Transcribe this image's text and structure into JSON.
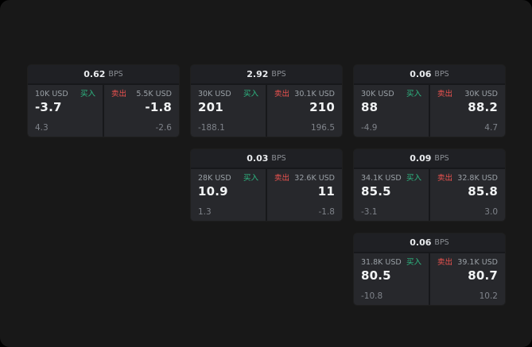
{
  "labels": {
    "buy": "买入",
    "sell": "卖出",
    "bps_suffix": "BPS"
  },
  "colors": {
    "buy": "#2ebd85",
    "sell": "#ef5350",
    "page_bg": "#181818",
    "card_bg": "#1f2024",
    "panel_bg": "#27282c"
  },
  "cards": [
    {
      "col": 1,
      "row": 1,
      "bps": "0.62",
      "buy_amount": "10K USD",
      "sell_amount": "5.5K USD",
      "buy_value": "-3.7",
      "sell_value": "-1.8",
      "buy_delta": "4.3",
      "sell_delta": "-2.6"
    },
    {
      "col": 2,
      "row": 1,
      "bps": "2.92",
      "buy_amount": "30K USD",
      "sell_amount": "30.1K USD",
      "buy_value": "201",
      "sell_value": "210",
      "buy_delta": "-188.1",
      "sell_delta": "196.5"
    },
    {
      "col": 3,
      "row": 1,
      "bps": "0.06",
      "buy_amount": "30K USD",
      "sell_amount": "30K USD",
      "buy_value": "88",
      "sell_value": "88.2",
      "buy_delta": "-4.9",
      "sell_delta": "4.7"
    },
    {
      "col": 2,
      "row": 2,
      "bps": "0.03",
      "buy_amount": "28K USD",
      "sell_amount": "32.6K USD",
      "buy_value": "10.9",
      "sell_value": "11",
      "buy_delta": "1.3",
      "sell_delta": "-1.8"
    },
    {
      "col": 3,
      "row": 2,
      "bps": "0.09",
      "buy_amount": "34.1K USD",
      "sell_amount": "32.8K USD",
      "buy_value": "85.5",
      "sell_value": "85.8",
      "buy_delta": "-3.1",
      "sell_delta": "3.0"
    },
    {
      "col": 3,
      "row": 3,
      "bps": "0.06",
      "buy_amount": "31.8K USD",
      "sell_amount": "39.1K USD",
      "buy_value": "80.5",
      "sell_value": "80.7",
      "buy_delta": "-10.8",
      "sell_delta": "10.2"
    }
  ]
}
